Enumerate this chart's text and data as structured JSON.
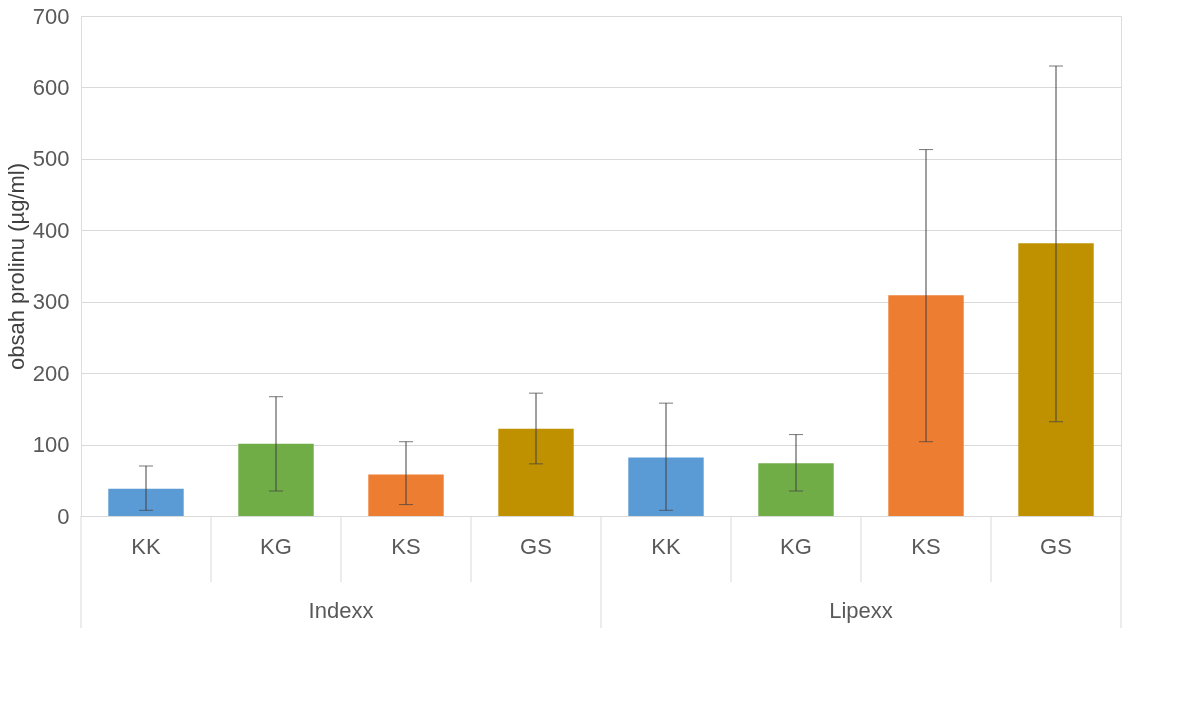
{
  "chart_data": {
    "type": "bar",
    "ylabel": "obsah prolinu (µg/ml)",
    "categories": [
      "KK",
      "KG",
      "KS",
      "GS",
      "KK",
      "KG",
      "KS",
      "GS"
    ],
    "values": [
      38,
      101,
      58,
      122,
      82,
      74,
      309,
      382
    ],
    "colors": [
      "#5b9bd5",
      "#70ad47",
      "#ed7d31",
      "#bf9000",
      "#5b9bd5",
      "#70ad47",
      "#ed7d31",
      "#bf9000"
    ],
    "errors": [
      [
        8,
        70
      ],
      [
        35,
        167
      ],
      [
        16,
        104
      ],
      [
        73,
        172
      ],
      [
        8,
        158
      ],
      [
        35,
        114
      ],
      [
        104,
        513
      ],
      [
        132,
        630
      ]
    ],
    "ylim": [
      0,
      700
    ],
    "yticks": [
      0,
      100,
      200,
      300,
      400,
      500,
      600,
      700
    ],
    "grid": "y",
    "annotations": [
      "Indexx",
      "Lipexx"
    ]
  }
}
